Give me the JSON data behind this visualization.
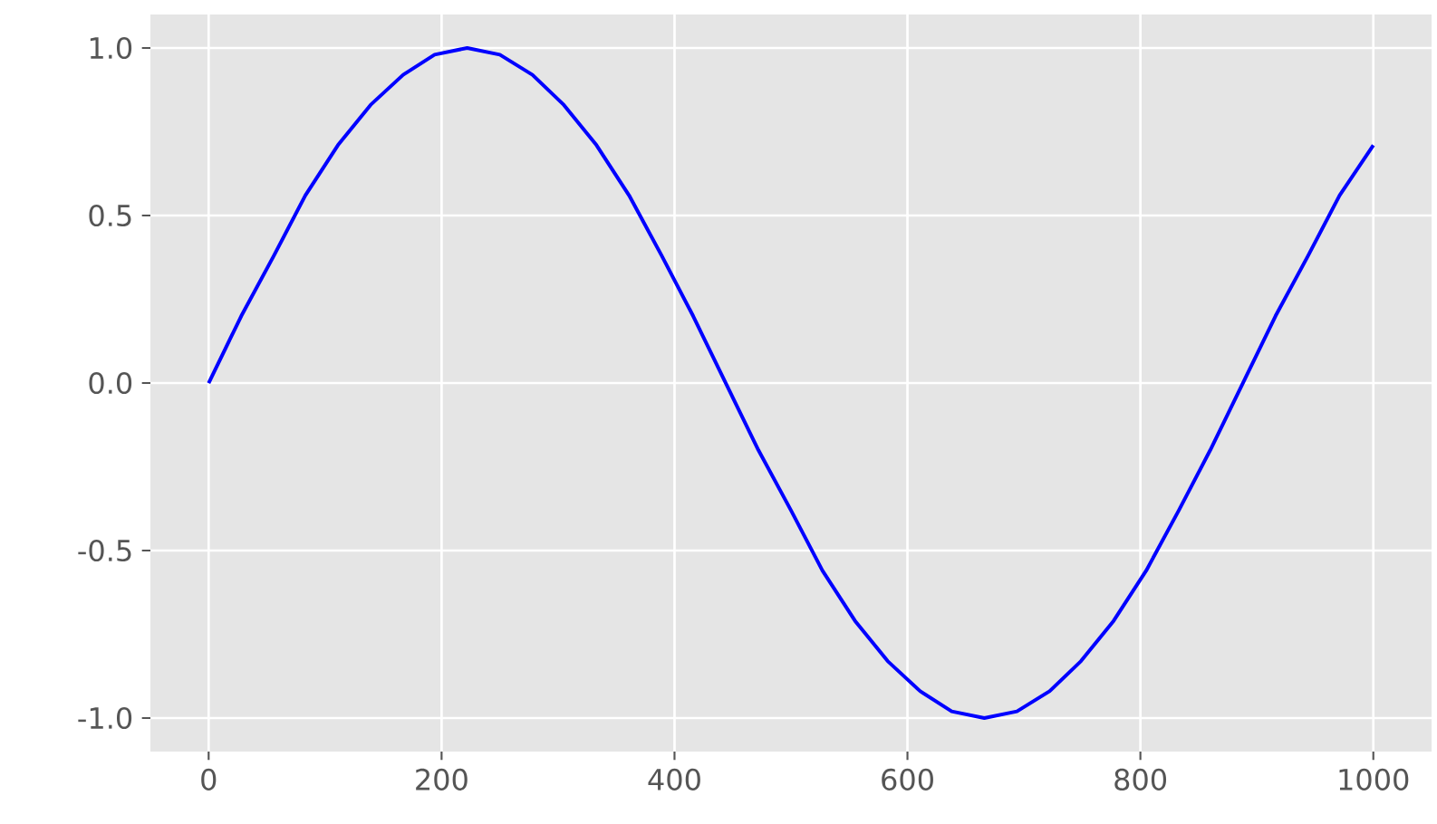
{
  "chart_data": {
    "type": "line",
    "x": [
      0,
      28,
      56,
      83,
      111,
      139,
      167,
      194,
      222,
      250,
      278,
      305,
      333,
      361,
      389,
      416,
      444,
      472,
      500,
      527,
      555,
      583,
      611,
      638,
      666,
      694,
      722,
      749,
      777,
      805,
      833,
      860,
      888,
      916,
      944,
      971,
      1000
    ],
    "series": [
      {
        "color": "#0000ff",
        "values": [
          0,
          0.2,
          0.38,
          0.56,
          0.71,
          0.83,
          0.92,
          0.98,
          1,
          0.98,
          0.92,
          0.83,
          0.71,
          0.56,
          0.38,
          0.2,
          0,
          -0.2,
          -0.38,
          -0.56,
          -0.71,
          -0.83,
          -0.92,
          -0.98,
          -1,
          -0.98,
          -0.92,
          -0.83,
          -0.71,
          -0.56,
          -0.38,
          -0.2,
          0,
          0.2,
          0.38,
          0.56,
          0.71
        ]
      }
    ],
    "xlim": [
      -50,
      1050
    ],
    "ylim": [
      -1.1,
      1.1
    ],
    "xticks": [
      0,
      200,
      400,
      600,
      800,
      1000
    ],
    "yticks": [
      {
        "value": -1.0,
        "label": "-1.0"
      },
      {
        "value": -0.5,
        "label": "-0.5"
      },
      {
        "value": 0,
        "label": "0.0"
      },
      {
        "value": 0.5,
        "label": "0.5"
      },
      {
        "value": 1.0,
        "label": "1.0"
      }
    ],
    "grid": true,
    "line_style": "solid",
    "marker": "none"
  }
}
